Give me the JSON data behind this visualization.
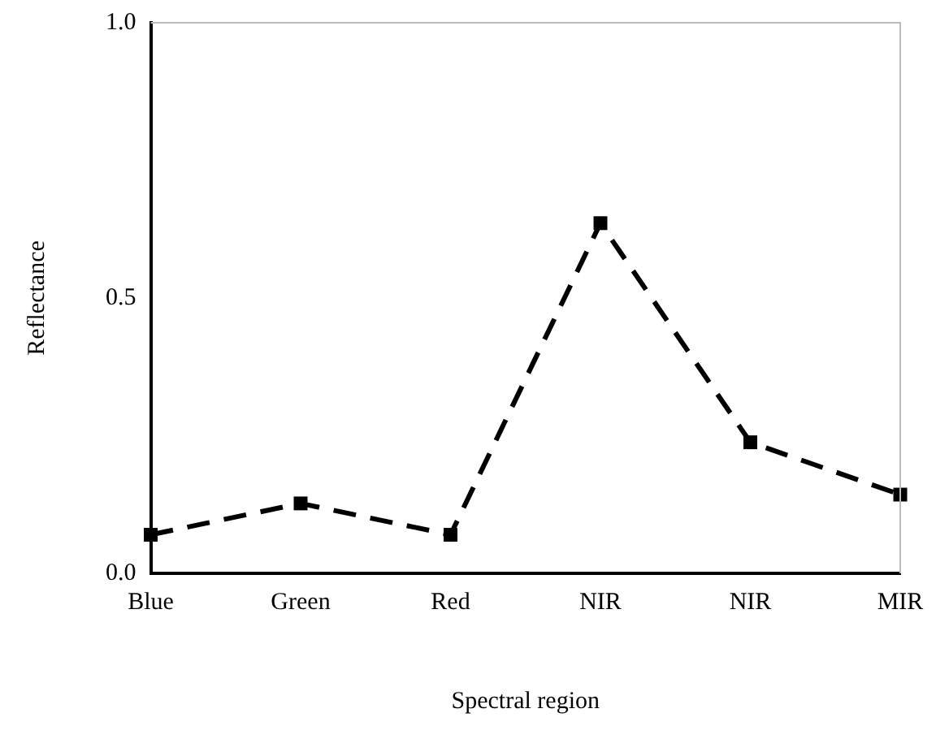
{
  "chart_data": {
    "type": "line",
    "xlabel": "Spectral region",
    "ylabel": "Reflectance",
    "categories": [
      "Blue",
      "Green",
      "Red",
      "NIR",
      "NIR",
      "MIR"
    ],
    "series": [
      {
        "color": "#000000",
        "values": [
          0.07,
          0.127,
          0.07,
          0.636,
          0.238,
          0.143
        ]
      }
    ],
    "ylim": [
      0,
      1
    ],
    "yticks": [
      {
        "value": 0,
        "label": "0.0"
      },
      {
        "value": 0.5,
        "label": "0.5"
      },
      {
        "value": 1,
        "label": "1.0"
      }
    ],
    "grid": false,
    "legend": false,
    "marker": "square",
    "line_style": "dashed"
  }
}
